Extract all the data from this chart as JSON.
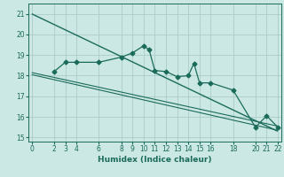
{
  "xlabel": "Humidex (Indice chaleur)",
  "bg_color": "#cce8e4",
  "grid_color": "#aaccc8",
  "line_color": "#1a6b5a",
  "x_ticks": [
    0,
    2,
    3,
    4,
    6,
    8,
    9,
    10,
    11,
    12,
    13,
    14,
    15,
    16,
    18,
    20,
    21,
    22
  ],
  "ylim": [
    14.8,
    21.5
  ],
  "xlim": [
    -0.3,
    22.3
  ],
  "yticks": [
    15,
    16,
    17,
    18,
    19,
    20,
    21
  ],
  "line1_x": [
    0,
    22
  ],
  "line1_y": [
    21.0,
    15.3
  ],
  "line2_x": [
    0,
    22
  ],
  "line2_y": [
    18.15,
    15.55
  ],
  "line3_x": [
    0,
    22
  ],
  "line3_y": [
    18.05,
    15.35
  ],
  "data_x": [
    2,
    3,
    4,
    6,
    8,
    9,
    10,
    10.5,
    11,
    12,
    13,
    14,
    14.5,
    15,
    16,
    18,
    20,
    21,
    22
  ],
  "data_y": [
    18.2,
    18.65,
    18.65,
    18.65,
    18.9,
    19.1,
    19.45,
    19.25,
    18.25,
    18.2,
    17.95,
    18.0,
    18.6,
    17.65,
    17.65,
    17.3,
    15.5,
    16.05,
    15.5
  ]
}
